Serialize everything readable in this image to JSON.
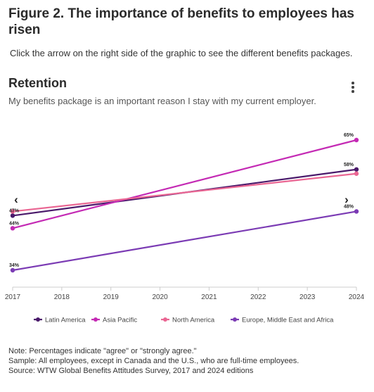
{
  "figure": {
    "title": "Figure 2. The importance of benefits to employees has risen",
    "intro": "Click the arrow on the right side of the graphic to see the different benefits packages."
  },
  "panel": {
    "title": "Retention",
    "subtitle": "My benefits package is an important reason I stay with my current employer."
  },
  "nav": {
    "prev_label": "‹",
    "next_label": "›",
    "menu_icon": "more-vertical-icon"
  },
  "notes": [
    "Note: Percentages indicate \"agree\" or \"strongly agree.\"",
    "Sample: All employees, except in Canada and the U.S., who are full-time employees.",
    "Source: WTW Global Benefits Attitudes Survey, 2017 and 2024 editions"
  ],
  "chart_data": {
    "type": "line",
    "x": [
      2017,
      2018,
      2019,
      2020,
      2021,
      2022,
      2023,
      2024
    ],
    "xlim": [
      2017,
      2024
    ],
    "ylim": [
      30,
      70
    ],
    "grid": false,
    "legend_position": "bottom",
    "series": [
      {
        "name": "Latin America",
        "color": "#4a1a6b",
        "points": [
          [
            2017,
            47
          ],
          [
            2024,
            58
          ]
        ],
        "labels": [
          "47%",
          "58%"
        ]
      },
      {
        "name": "Asia Pacific",
        "color": "#c42ab4",
        "points": [
          [
            2017,
            44
          ],
          [
            2024,
            65
          ]
        ],
        "labels": [
          "44%",
          "65%"
        ]
      },
      {
        "name": "North America",
        "color": "#ea6693",
        "points": [
          [
            2017,
            48
          ],
          [
            2024,
            57
          ]
        ],
        "labels": [
          "",
          ""
        ]
      },
      {
        "name": "Europe, Middle East and Africa",
        "color": "#7b3bb4",
        "points": [
          [
            2017,
            34
          ],
          [
            2024,
            48
          ]
        ],
        "labels": [
          "34%",
          "48%"
        ]
      }
    ]
  }
}
